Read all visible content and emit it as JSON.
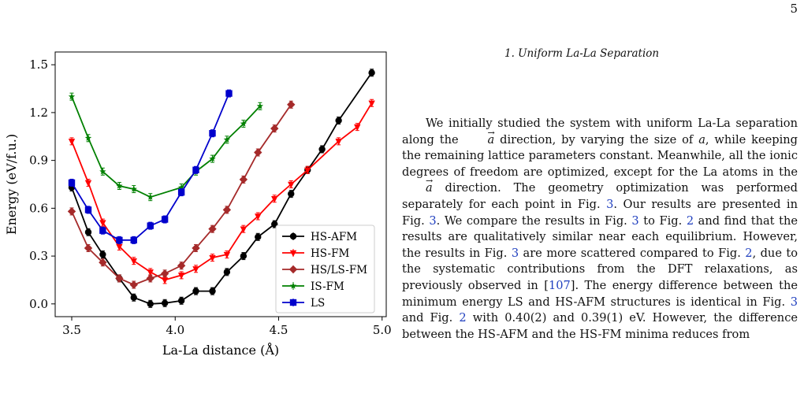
{
  "page_number": "5",
  "section_heading": "1.   Uniform La-La Separation",
  "paragraph": {
    "t1": "We initially studied the system with uniform La-La separation along the ",
    "vec": "a",
    "t2": " direction, by varying the size of ",
    "a_italic": "a",
    "t3": ", while keeping the remaining lattice parameters constant. Meanwhile, all the ionic degrees of freedom are optimized, except for the La atoms in the ",
    "t4": " direction. The geometry optimization was performed separately for each point in Fig. ",
    "fig3": "3",
    "t5": ". Our results are presented in Fig. ",
    "t6": ". We compare the results in Fig. ",
    "t7": " to Fig. ",
    "fig2": "2",
    "t8": " and find that the results are qualitatively similar near each equilibrium. However, the results in Fig. ",
    "t9": " are more scattered compared to Fig. ",
    "t10": ", due to the systematic contributions from the DFT relaxations, as previously observed in [",
    "ref107": "107",
    "t11": "]. The energy difference between the minimum energy LS and HS-AFM structures is identical in Fig. ",
    "t12": " and Fig. ",
    "t13": " with 0.40(2) and 0.39(1) eV. However, the difference between the HS-AFM and the HS-FM minima reduces from"
  },
  "chart_data": {
    "type": "line",
    "xlabel": "La-La distance (Å)",
    "ylabel": "Energy (eV/f.u.)",
    "xlim": [
      3.42,
      5.02
    ],
    "ylim": [
      -0.08,
      1.58
    ],
    "x_ticks": [
      3.5,
      4.0,
      4.5,
      5.0
    ],
    "x_tick_labels": [
      "3.5",
      "4.0",
      "4.5",
      "5.0"
    ],
    "y_ticks": [
      0.0,
      0.3,
      0.6,
      0.9,
      1.2,
      1.5
    ],
    "y_tick_labels": [
      "0.0",
      "0.3",
      "0.6",
      "0.9",
      "1.2",
      "1.5"
    ],
    "grid": false,
    "legend_position": "bottom-right",
    "series": [
      {
        "name": "HS-AFM",
        "color": "#000000",
        "marker": "circle",
        "points": [
          [
            3.5,
            0.73
          ],
          [
            3.58,
            0.45
          ],
          [
            3.65,
            0.31
          ],
          [
            3.73,
            0.16
          ],
          [
            3.8,
            0.04
          ],
          [
            3.88,
            0.0
          ],
          [
            3.95,
            0.005
          ],
          [
            4.03,
            0.02
          ],
          [
            4.1,
            0.08
          ],
          [
            4.18,
            0.08
          ],
          [
            4.25,
            0.2
          ],
          [
            4.33,
            0.3
          ],
          [
            4.4,
            0.42
          ],
          [
            4.48,
            0.5
          ],
          [
            4.56,
            0.69
          ],
          [
            4.64,
            0.84
          ],
          [
            4.71,
            0.97
          ],
          [
            4.79,
            1.15
          ],
          [
            4.95,
            1.45
          ]
        ]
      },
      {
        "name": "HS-FM",
        "color": "#ff0000",
        "marker": "triangle-down",
        "points": [
          [
            3.5,
            1.02
          ],
          [
            3.58,
            0.76
          ],
          [
            3.65,
            0.51
          ],
          [
            3.73,
            0.36
          ],
          [
            3.8,
            0.27
          ],
          [
            3.88,
            0.2
          ],
          [
            3.95,
            0.15
          ],
          [
            4.03,
            0.18
          ],
          [
            4.1,
            0.22
          ],
          [
            4.18,
            0.29
          ],
          [
            4.25,
            0.31
          ],
          [
            4.33,
            0.47
          ],
          [
            4.4,
            0.55
          ],
          [
            4.48,
            0.66
          ],
          [
            4.56,
            0.75
          ],
          [
            4.64,
            0.84
          ],
          [
            4.79,
            1.02
          ],
          [
            4.88,
            1.11
          ],
          [
            4.95,
            1.26
          ]
        ]
      },
      {
        "name": "HS/LS-FM",
        "color": "#a52a2a",
        "marker": "diamond",
        "points": [
          [
            3.5,
            0.58
          ],
          [
            3.58,
            0.35
          ],
          [
            3.65,
            0.26
          ],
          [
            3.73,
            0.16
          ],
          [
            3.8,
            0.12
          ],
          [
            3.88,
            0.16
          ],
          [
            3.95,
            0.19
          ],
          [
            4.03,
            0.24
          ],
          [
            4.1,
            0.35
          ],
          [
            4.18,
            0.47
          ],
          [
            4.25,
            0.59
          ],
          [
            4.33,
            0.78
          ],
          [
            4.4,
            0.95
          ],
          [
            4.48,
            1.1
          ],
          [
            4.56,
            1.25
          ]
        ]
      },
      {
        "name": "IS-FM",
        "color": "#008000",
        "marker": "star",
        "points": [
          [
            3.5,
            1.3
          ],
          [
            3.58,
            1.04
          ],
          [
            3.65,
            0.83
          ],
          [
            3.73,
            0.74
          ],
          [
            3.8,
            0.72
          ],
          [
            3.88,
            0.67
          ],
          [
            4.03,
            0.73
          ],
          [
            4.1,
            0.83
          ],
          [
            4.18,
            0.91
          ],
          [
            4.25,
            1.03
          ],
          [
            4.33,
            1.13
          ],
          [
            4.41,
            1.24
          ]
        ]
      },
      {
        "name": "LS",
        "color": "#0000cc",
        "marker": "square",
        "points": [
          [
            3.5,
            0.76
          ],
          [
            3.58,
            0.59
          ],
          [
            3.65,
            0.46
          ],
          [
            3.73,
            0.4
          ],
          [
            3.8,
            0.4
          ],
          [
            3.88,
            0.49
          ],
          [
            3.95,
            0.53
          ],
          [
            4.03,
            0.7
          ],
          [
            4.1,
            0.84
          ],
          [
            4.18,
            1.07
          ],
          [
            4.26,
            1.32
          ]
        ]
      }
    ]
  }
}
